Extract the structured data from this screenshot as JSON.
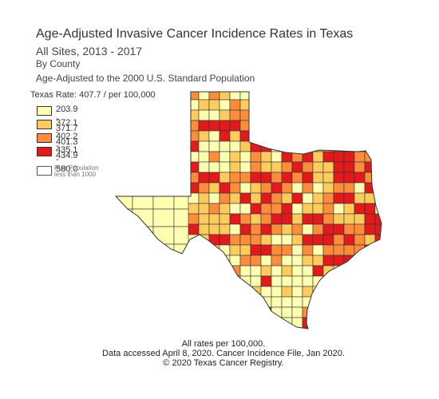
{
  "title": "Age-Adjusted Invasive Cancer Incidence Rates in Texas",
  "subtitle_sites": "All Sites, 2013 - 2017",
  "subtitle_geo": "By County",
  "subtitle_std": "Age-Adjusted to the 2000 U.S. Standard Population",
  "state_rate": "Texas Rate: 407.7 / per 100,000",
  "legend": [
    {
      "label": "203.9 - 371.7",
      "color": "#ffffb2"
    },
    {
      "label": "372.1 - 401.3",
      "color": "#fecc5c"
    },
    {
      "label": "402.2 - 434.9",
      "color": "#fd8d3c"
    },
    {
      "label": "435.1 - 580.0",
      "color": "#e31a1c"
    }
  ],
  "risk_legend": {
    "line1": "Risk Population",
    "line2": "less than 1000",
    "color": "#ffffff"
  },
  "footer": {
    "line1": "All rates per 100,000.",
    "line2": "Data accessed April 8, 2020. Cancer Incidence File, Jan 2020.",
    "line3": "© 2020 Texas Cancer Registry."
  },
  "colors": {
    "outline": "#333333",
    "background": "#ffffff"
  }
}
